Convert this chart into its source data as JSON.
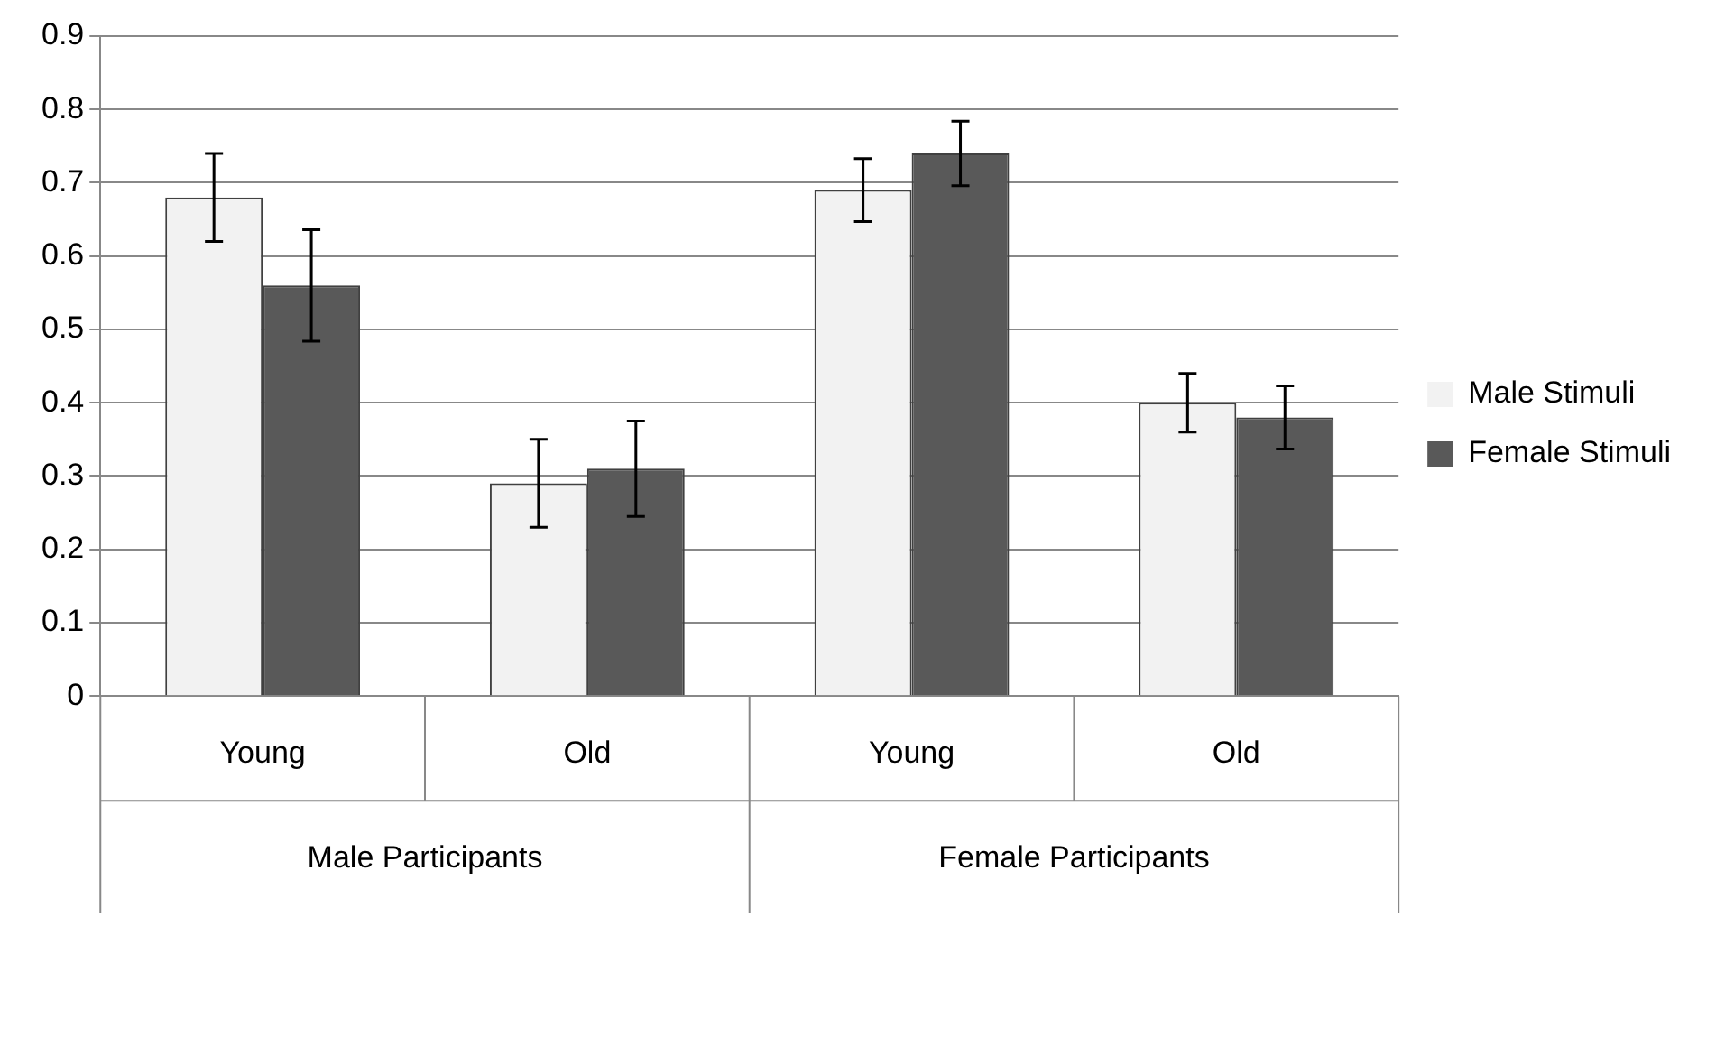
{
  "chart_data": {
    "type": "bar",
    "categories": [
      "Young",
      "Old",
      "Young",
      "Old"
    ],
    "series": [
      {
        "name": "Male Stimuli",
        "color": "#f2f2f2",
        "values": [
          0.68,
          0.29,
          0.69,
          0.4
        ],
        "errors": [
          0.06,
          0.06,
          0.043,
          0.04
        ]
      },
      {
        "name": "Female Stimuli",
        "color": "#595959",
        "values": [
          0.56,
          0.31,
          0.74,
          0.38
        ],
        "errors": [
          0.076,
          0.065,
          0.044,
          0.043
        ]
      }
    ],
    "annotations": [
      "Male Participants",
      "Female Participants"
    ],
    "ylim": [
      0,
      0.9
    ],
    "yticks": [
      0,
      0.1,
      0.2,
      0.3,
      0.4,
      0.5,
      0.6,
      0.7,
      0.8,
      0.9
    ],
    "grid": "y",
    "legend": "right"
  }
}
